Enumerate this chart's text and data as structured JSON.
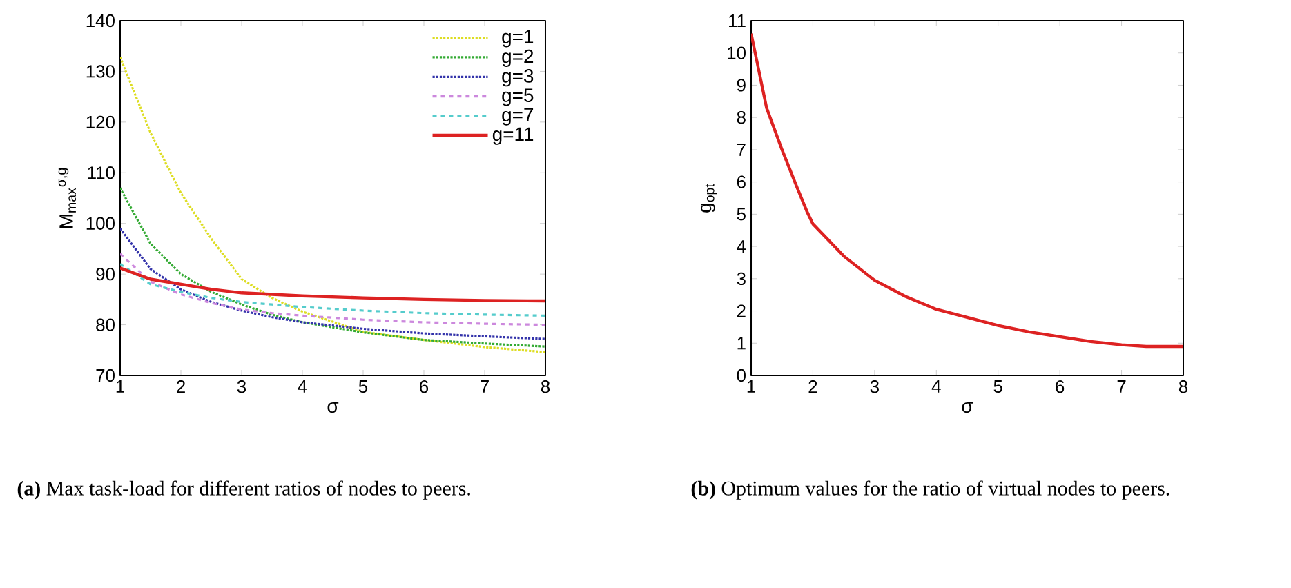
{
  "chart_data": [
    {
      "type": "line",
      "xlabel": "σ",
      "ylabel": "M$_{max}$$^{σ,g}$",
      "x": [
        1,
        1.5,
        2,
        2.5,
        3,
        3.5,
        4,
        5,
        6,
        7,
        8
      ],
      "xlim": [
        1,
        8
      ],
      "xticks": [
        1,
        2,
        3,
        4,
        5,
        6,
        7,
        8
      ],
      "ylim": [
        70,
        140
      ],
      "yticks": [
        70,
        80,
        90,
        100,
        110,
        120,
        130,
        140
      ],
      "legend": "top right",
      "series": [
        {
          "name": "g=1",
          "color": "#dddd22",
          "line_style": "dotted",
          "values": [
            132.8,
            117.9,
            106,
            97,
            89,
            85.3,
            82.6,
            78.6,
            77,
            75.6,
            74.6
          ]
        },
        {
          "name": "g=2",
          "color": "#33aa33",
          "line_style": "dotted",
          "values": [
            107,
            96,
            90,
            86.5,
            84,
            82,
            80.5,
            78.5,
            77,
            76.3,
            75.7
          ]
        },
        {
          "name": "g=3",
          "color": "#3333aa",
          "line_style": "dotted",
          "values": [
            99,
            91,
            87,
            84.5,
            82.8,
            81.5,
            80.5,
            79.2,
            78.3,
            77.7,
            77.2
          ]
        },
        {
          "name": "g=5",
          "color": "#cc88dd",
          "line_style": "dashed",
          "values": [
            94,
            88.5,
            86,
            84.3,
            83,
            82.3,
            81.8,
            81,
            80.5,
            80.2,
            80
          ]
        },
        {
          "name": "g=7",
          "color": "#55cccc",
          "line_style": "dashed",
          "values": [
            92,
            88,
            86.5,
            85.3,
            84.5,
            84,
            83.5,
            82.8,
            82.3,
            82,
            81.8
          ]
        },
        {
          "name": "g=11",
          "color": "#dd2222",
          "line_style": "solid",
          "values": [
            91.2,
            89,
            88,
            87,
            86.3,
            86,
            85.7,
            85.3,
            85,
            84.8,
            84.7
          ]
        }
      ],
      "annotations": [
        "**(a)** Max task-load for different ratios of nodes to peers."
      ]
    },
    {
      "type": "line",
      "xlabel": "σ",
      "ylabel": "g$_{opt}$",
      "x": [
        1,
        1.25,
        1.5,
        1.75,
        1.9,
        2,
        2.5,
        3,
        3.5,
        4,
        4.5,
        5,
        5.5,
        6,
        6.5,
        7,
        7.4,
        8
      ],
      "xlim": [
        1,
        8
      ],
      "xticks": [
        1,
        2,
        3,
        4,
        5,
        6,
        7,
        8
      ],
      "ylim": [
        0,
        11
      ],
      "yticks": [
        0,
        1,
        2,
        3,
        4,
        5,
        6,
        7,
        8,
        9,
        10,
        11
      ],
      "series": [
        {
          "color": "#dd2222",
          "line_style": "solid",
          "values": [
            10.6,
            8.3,
            7,
            5.8,
            5.1,
            4.7,
            3.7,
            2.95,
            2.45,
            2.05,
            1.8,
            1.55,
            1.35,
            1.2,
            1.05,
            0.95,
            0.9,
            0.9
          ]
        }
      ],
      "annotations": [
        "**(b)** Optimum values for the ratio of virtual nodes to peers."
      ]
    }
  ]
}
